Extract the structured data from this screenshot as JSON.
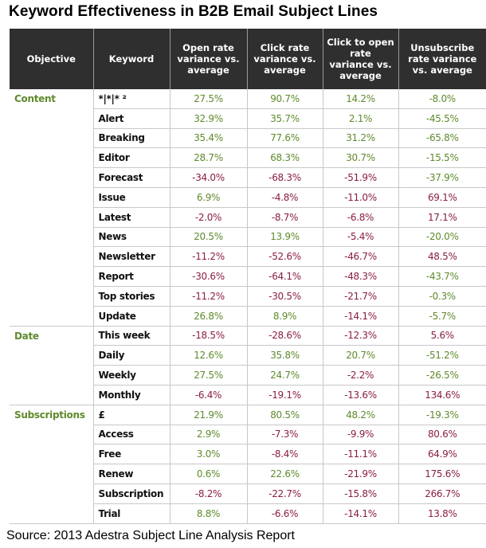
{
  "chart_data": {
    "type": "table",
    "title": "Keyword Effectiveness in B2B Email Subject Lines",
    "columns": [
      "Objective",
      "Keyword",
      "Open rate variance vs. average",
      "Click rate variance vs. average",
      "Click to open rate variance vs. average",
      "Unsubscribe rate variance vs. average"
    ],
    "rows": [
      {
        "objective": "Content",
        "keyword": "*|*|* ²",
        "values": [
          "27.5%",
          "90.7%",
          "14.2%",
          "-8.0%"
        ]
      },
      {
        "objective": "",
        "keyword": "Alert",
        "values": [
          "32.9%",
          "35.7%",
          "2.1%",
          "-45.5%"
        ]
      },
      {
        "objective": "",
        "keyword": "Breaking",
        "values": [
          "35.4%",
          "77.6%",
          "31.2%",
          "-65.8%"
        ]
      },
      {
        "objective": "",
        "keyword": "Editor",
        "values": [
          "28.7%",
          "68.3%",
          "30.7%",
          "-15.5%"
        ]
      },
      {
        "objective": "",
        "keyword": "Forecast",
        "values": [
          "-34.0%",
          "-68.3%",
          "-51.9%",
          "-37.9%"
        ]
      },
      {
        "objective": "",
        "keyword": "Issue",
        "values": [
          "6.9%",
          "-4.8%",
          "-11.0%",
          "69.1%"
        ]
      },
      {
        "objective": "",
        "keyword": "Latest",
        "values": [
          "-2.0%",
          "-8.7%",
          "-6.8%",
          "17.1%"
        ]
      },
      {
        "objective": "",
        "keyword": "News",
        "values": [
          "20.5%",
          "13.9%",
          "-5.4%",
          "-20.0%"
        ]
      },
      {
        "objective": "",
        "keyword": "Newsletter",
        "values": [
          "-11.2%",
          "-52.6%",
          "-46.7%",
          "48.5%"
        ]
      },
      {
        "objective": "",
        "keyword": "Report",
        "values": [
          "-30.6%",
          "-64.1%",
          "-48.3%",
          "-43.7%"
        ]
      },
      {
        "objective": "",
        "keyword": "Top stories",
        "values": [
          "-11.2%",
          "-30.5%",
          "-21.7%",
          "-0.3%"
        ]
      },
      {
        "objective": "",
        "keyword": "Update",
        "values": [
          "26.8%",
          "8.9%",
          "-14.1%",
          "-5.7%"
        ]
      },
      {
        "objective": "Date",
        "keyword": "This week",
        "values": [
          "-18.5%",
          "-28.6%",
          "-12.3%",
          "5.6%"
        ]
      },
      {
        "objective": "",
        "keyword": "Daily",
        "values": [
          "12.6%",
          "35.8%",
          "20.7%",
          "-51.2%"
        ]
      },
      {
        "objective": "",
        "keyword": "Weekly",
        "values": [
          "27.5%",
          "24.7%",
          "-2.2%",
          "-26.5%"
        ]
      },
      {
        "objective": "",
        "keyword": "Monthly",
        "values": [
          "-6.4%",
          "-19.1%",
          "-13.6%",
          "134.6%"
        ]
      },
      {
        "objective": "Subscriptions",
        "keyword": "£",
        "values": [
          "21.9%",
          "80.5%",
          "48.2%",
          "-19.3%"
        ]
      },
      {
        "objective": "",
        "keyword": "Access",
        "values": [
          "2.9%",
          "-7.3%",
          "-9.9%",
          "80.6%"
        ]
      },
      {
        "objective": "",
        "keyword": "Free",
        "values": [
          "3.0%",
          "-8.4%",
          "-11.1%",
          "64.9%"
        ]
      },
      {
        "objective": "",
        "keyword": "Renew",
        "values": [
          "0.6%",
          "22.6%",
          "-21.9%",
          "175.6%"
        ]
      },
      {
        "objective": "",
        "keyword": "Subscription",
        "values": [
          "-8.2%",
          "-22.7%",
          "-15.8%",
          "266.7%"
        ]
      },
      {
        "objective": "",
        "keyword": "Trial",
        "values": [
          "8.8%",
          "-6.6%",
          "-14.1%",
          "13.8%"
        ]
      }
    ],
    "source": "Source: 2013 Adestra Subject Line Analysis Report",
    "colors": {
      "good": "#5f8a2c",
      "bad": "#8a1f3f",
      "header": "#2f2f2f"
    }
  }
}
